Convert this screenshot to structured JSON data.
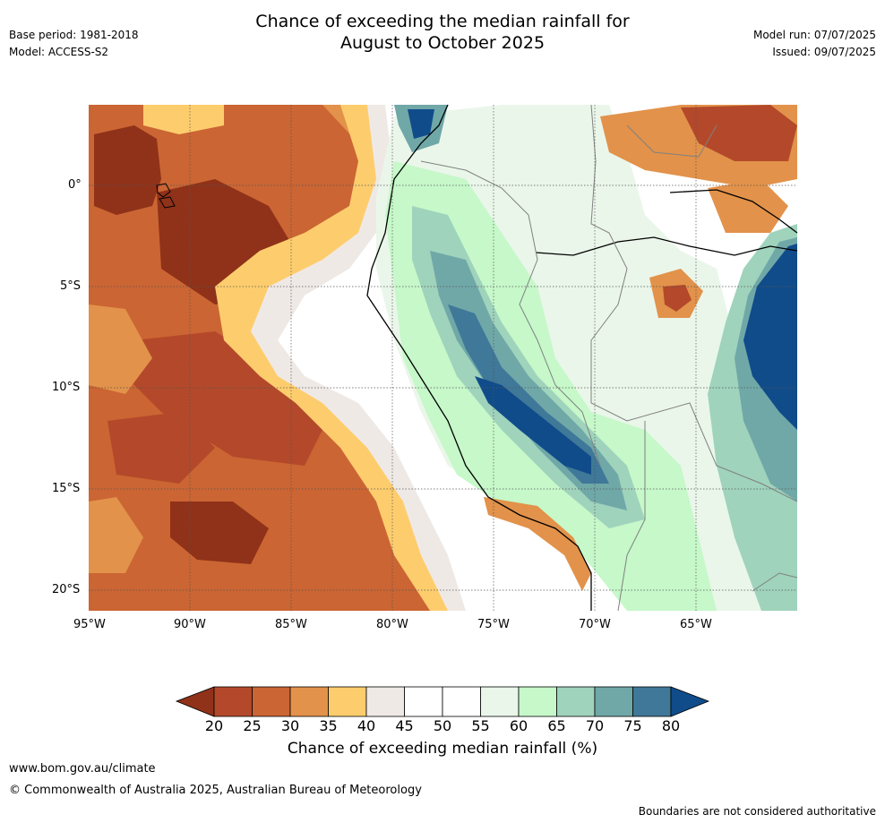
{
  "header": {
    "title_line1": "Chance of exceeding the median rainfall for",
    "title_line2": "August to October 2025",
    "base_period": "Base period: 1981-2018",
    "model": "Model: ACCESS-S2",
    "model_run": "Model run: 07/07/2025",
    "issued": "Issued: 09/07/2025"
  },
  "map": {
    "lon_ticks": [
      "95°W",
      "90°W",
      "85°W",
      "80°W",
      "75°W",
      "70°W",
      "65°W"
    ],
    "lat_ticks": [
      "0°",
      "5°S",
      "10°S",
      "15°S",
      "20°S"
    ]
  },
  "colorbar": {
    "ticks": [
      "20",
      "25",
      "30",
      "35",
      "40",
      "45",
      "50",
      "55",
      "60",
      "65",
      "70",
      "75",
      "80"
    ],
    "colors": [
      "#8f3219",
      "#b3492a",
      "#cb6533",
      "#e2924a",
      "#fdcd6d",
      "#efe9e6",
      "#ffffff",
      "#ffffff",
      "#eaf6ea",
      "#c6f8c9",
      "#9fd3bc",
      "#70a8a8",
      "#3f7898",
      "#104c8a"
    ],
    "label": "Chance of exceeding median rainfall (%)"
  },
  "footer": {
    "url": "www.bom.gov.au/climate",
    "copyright": "© Commonwealth of Australia 2025, Australian Bureau of Meteorology",
    "disclaimer": "Boundaries are not considered authoritative"
  }
}
